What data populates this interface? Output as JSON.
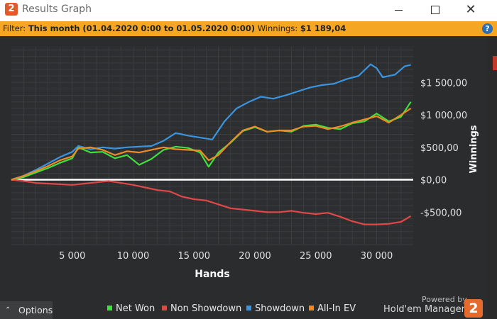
{
  "window": {
    "title": "Results Graph",
    "logo_text": "2"
  },
  "filter": {
    "label": "Filter:",
    "value": "This month (01.04.2020 0:00 to 01.05.2020 0:00)",
    "winnings_label": "Winnings:",
    "winnings_value": "$1 189,04"
  },
  "footer": {
    "options_label": "Options",
    "legend": [
      {
        "label": "Net Won",
        "color": "#3ee03e"
      },
      {
        "label": "Non Showdown",
        "color": "#e04848"
      },
      {
        "label": "Showdown",
        "color": "#3a94e0"
      },
      {
        "label": "All-In EV",
        "color": "#f08a26"
      }
    ],
    "powered_by": "Powered by",
    "brand": "Hold'em Manager",
    "brand_logo_text": "2"
  },
  "chart_data": {
    "type": "line",
    "xlabel": "Hands",
    "ylabel": "Winnings",
    "xlim": [
      0,
      33000
    ],
    "ylim": [
      -1000,
      2050
    ],
    "x_ticks": [
      5000,
      10000,
      15000,
      20000,
      25000,
      30000
    ],
    "x_tick_labels": [
      "5 000",
      "10 000",
      "15 000",
      "20 000",
      "25 000",
      "30 000"
    ],
    "y_ticks": [
      -500,
      0,
      500,
      1000,
      1500
    ],
    "y_tick_labels": [
      "-$500,00",
      "$0,00",
      "$500,00",
      "$1 000,00",
      "$1 500,00"
    ],
    "grid": true,
    "zero_line_color": "#ffffff",
    "series": [
      {
        "name": "Net Won",
        "color": "#3ee03e",
        "x": [
          0,
          1000,
          2000,
          3000,
          4000,
          5000,
          5500,
          6500,
          7500,
          8500,
          9500,
          10500,
          11500,
          12500,
          13500,
          14500,
          15500,
          16200,
          17000,
          18000,
          19000,
          20000,
          21000,
          22000,
          23000,
          24000,
          25000,
          26000,
          27000,
          28000,
          29000,
          30000,
          31000,
          32000,
          32800
        ],
        "values": [
          0,
          40,
          110,
          180,
          260,
          330,
          500,
          420,
          430,
          330,
          380,
          230,
          320,
          460,
          510,
          490,
          420,
          200,
          420,
          570,
          750,
          810,
          740,
          760,
          740,
          830,
          850,
          800,
          780,
          870,
          900,
          1020,
          900,
          970,
          1200
        ]
      },
      {
        "name": "Non Showdown",
        "color": "#e04848",
        "x": [
          0,
          1000,
          2000,
          3000,
          4000,
          5000,
          6000,
          7000,
          8000,
          9000,
          10000,
          11000,
          12000,
          13000,
          14000,
          15000,
          16000,
          17000,
          18000,
          19000,
          20000,
          21000,
          22000,
          23000,
          24000,
          25000,
          26000,
          27000,
          28000,
          29000,
          30000,
          31000,
          32000,
          32800
        ],
        "values": [
          0,
          -20,
          -50,
          -60,
          -70,
          -80,
          -60,
          -40,
          -20,
          -50,
          -80,
          -120,
          -160,
          -180,
          -260,
          -300,
          -320,
          -380,
          -440,
          -460,
          -480,
          -500,
          -500,
          -480,
          -510,
          -530,
          -510,
          -570,
          -640,
          -690,
          -690,
          -680,
          -650,
          -560
        ]
      },
      {
        "name": "Showdown",
        "color": "#3a94e0",
        "x": [
          0,
          1000,
          2000,
          3000,
          4000,
          5000,
          5500,
          6500,
          7500,
          8500,
          9500,
          10500,
          11500,
          12500,
          13500,
          14500,
          15500,
          16500,
          17500,
          18500,
          19500,
          20500,
          21500,
          22500,
          23500,
          24500,
          25500,
          26500,
          27500,
          28500,
          29500,
          30000,
          30500,
          31500,
          32300,
          32800
        ],
        "values": [
          0,
          60,
          150,
          250,
          350,
          430,
          520,
          470,
          500,
          480,
          500,
          510,
          520,
          600,
          720,
          680,
          650,
          620,
          900,
          1100,
          1200,
          1280,
          1250,
          1300,
          1360,
          1420,
          1460,
          1480,
          1550,
          1600,
          1780,
          1720,
          1580,
          1620,
          1750,
          1770
        ]
      },
      {
        "name": "All-In EV",
        "color": "#f08a26",
        "x": [
          0,
          1000,
          2000,
          3000,
          4000,
          5000,
          5500,
          6500,
          7500,
          8500,
          9500,
          10500,
          11500,
          12500,
          13500,
          14500,
          15500,
          16200,
          17000,
          18000,
          19000,
          20000,
          21000,
          22000,
          23000,
          24000,
          25000,
          26000,
          27000,
          28000,
          29000,
          30000,
          31000,
          32000,
          32800
        ],
        "values": [
          0,
          60,
          130,
          210,
          300,
          360,
          480,
          500,
          460,
          380,
          440,
          420,
          460,
          500,
          470,
          460,
          450,
          300,
          380,
          580,
          760,
          820,
          740,
          760,
          760,
          820,
          830,
          780,
          820,
          880,
          930,
          980,
          880,
          1000,
          1100
        ]
      }
    ]
  }
}
